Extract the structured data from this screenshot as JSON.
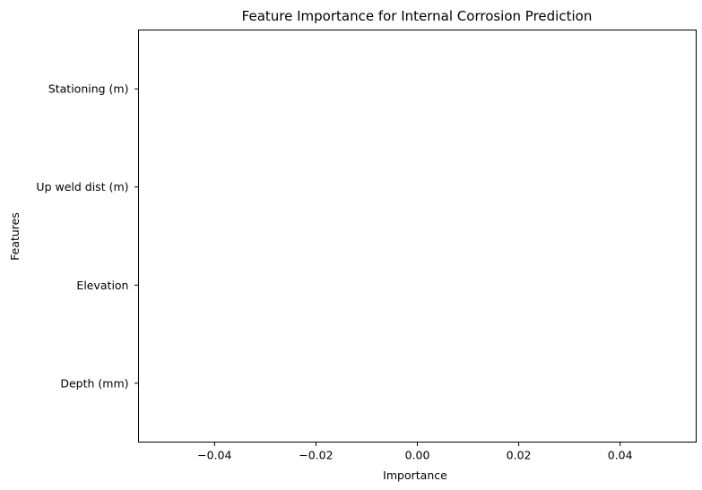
{
  "chart_data": {
    "type": "bar",
    "orientation": "horizontal",
    "title": "Feature Importance for Internal Corrosion Prediction",
    "xlabel": "Importance",
    "ylabel": "Features",
    "categories": [
      "Depth (mm)",
      "Elevation",
      "Up weld dist (m)",
      "Stationing (m)"
    ],
    "values": [
      0,
      0,
      0,
      0
    ],
    "xlim": [
      -0.055,
      0.055
    ],
    "xticks": [
      -0.04,
      -0.02,
      0.0,
      0.02,
      0.04
    ],
    "xtick_labels": [
      "−0.04",
      "−0.02",
      "0.00",
      "0.02",
      "0.04"
    ],
    "grid": false,
    "colors": {
      "axes": "#000000",
      "text": "#000000",
      "background": "#ffffff"
    }
  }
}
